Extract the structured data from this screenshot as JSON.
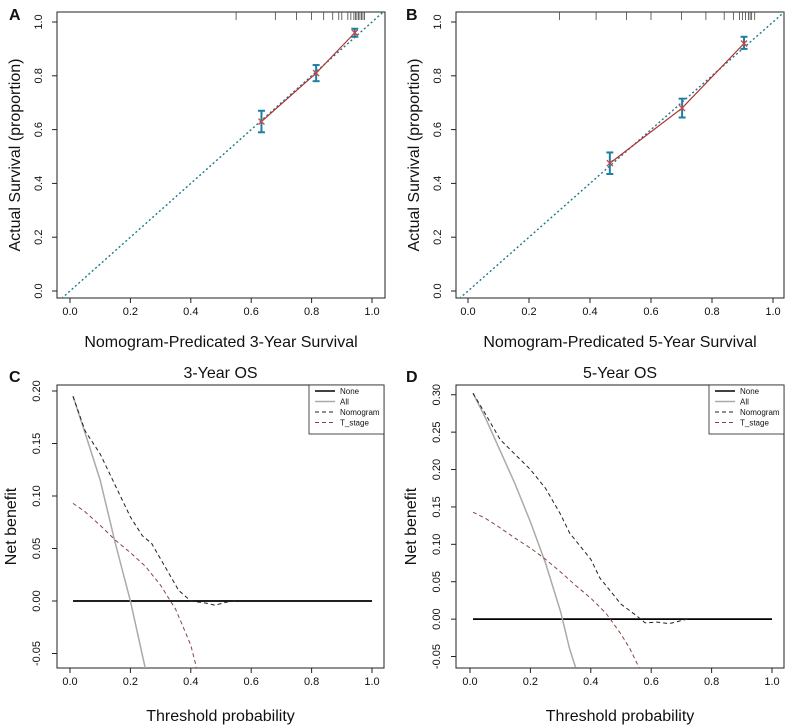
{
  "chart_data": [
    {
      "panel": "A",
      "type": "calibration",
      "title": "",
      "xlabel": "Nomogram-Predicated 3-Year Survival",
      "ylabel": "Actual Survival (proportion)",
      "xlim": [
        0,
        1
      ],
      "ylim": [
        0,
        1
      ],
      "xticks": [
        "0.0",
        "0.2",
        "0.4",
        "0.6",
        "0.8",
        "1.0"
      ],
      "yticks": [
        "0.0",
        "0.2",
        "0.4",
        "0.6",
        "0.8",
        "1.0"
      ],
      "reference_line": {
        "name": "ideal",
        "points": [
          [
            -0.05,
            -0.05
          ],
          [
            1.05,
            1.05
          ]
        ]
      },
      "points": [
        {
          "x": 0.634,
          "y": 0.63,
          "lo": 0.59,
          "hi": 0.67
        },
        {
          "x": 0.815,
          "y": 0.81,
          "lo": 0.78,
          "hi": 0.84
        },
        {
          "x": 0.943,
          "y": 0.96,
          "lo": 0.945,
          "hi": 0.975
        }
      ],
      "rug": [
        0.55,
        0.68,
        0.75,
        0.8,
        0.84,
        0.87,
        0.89,
        0.9,
        0.92,
        0.93,
        0.94,
        0.945,
        0.95,
        0.955,
        0.96,
        0.965,
        0.97,
        0.975
      ],
      "colors": {
        "ideal": "#1a7a8a",
        "curve": "#b03030",
        "error": "#1f7fa0",
        "marker": "#cc4444"
      }
    },
    {
      "panel": "B",
      "type": "calibration",
      "title": "",
      "xlabel": "Nomogram-Predicated 5-Year Survival",
      "ylabel": "Actual Survival (proportion)",
      "xlim": [
        0,
        1
      ],
      "ylim": [
        0,
        1
      ],
      "xticks": [
        "0.0",
        "0.2",
        "0.4",
        "0.6",
        "0.8",
        "1.0"
      ],
      "yticks": [
        "0.0",
        "0.2",
        "0.4",
        "0.6",
        "0.8",
        "1.0"
      ],
      "reference_line": {
        "name": "ideal",
        "points": [
          [
            -0.05,
            -0.05
          ],
          [
            1.05,
            1.05
          ]
        ]
      },
      "points": [
        {
          "x": 0.465,
          "y": 0.475,
          "lo": 0.435,
          "hi": 0.515
        },
        {
          "x": 0.702,
          "y": 0.68,
          "lo": 0.645,
          "hi": 0.715
        },
        {
          "x": 0.905,
          "y": 0.92,
          "lo": 0.9,
          "hi": 0.945
        }
      ],
      "rug": [
        0.3,
        0.42,
        0.52,
        0.6,
        0.7,
        0.78,
        0.84,
        0.87,
        0.89,
        0.9,
        0.91,
        0.92,
        0.925,
        0.93,
        0.94
      ],
      "colors": {
        "ideal": "#1a7a8a",
        "curve": "#b03030",
        "error": "#1f7fa0",
        "marker": "#cc4444"
      }
    },
    {
      "panel": "C",
      "type": "line",
      "title": "3-Year OS",
      "xlabel": "Threshold probability",
      "ylabel": "Net benefit",
      "xlim": [
        0,
        1
      ],
      "ylim": [
        -0.06,
        0.2
      ],
      "xticks": [
        "0.0",
        "0.2",
        "0.4",
        "0.6",
        "0.8",
        "1.0"
      ],
      "yticks": [
        "-0.05",
        "0.00",
        "0.05",
        "0.10",
        "0.15",
        "0.20"
      ],
      "ytick_values": [
        -0.05,
        0,
        0.05,
        0.1,
        0.15,
        0.2
      ],
      "legend": [
        "None",
        "All",
        "Nomogram",
        "T_stage"
      ],
      "legend_position": "top-right",
      "series": [
        {
          "name": "None",
          "color": "#000000",
          "dash": "",
          "width": 1.8,
          "points": [
            [
              0.01,
              0.0
            ],
            [
              1.0,
              0.0
            ]
          ]
        },
        {
          "name": "All",
          "color": "#aaaaaa",
          "dash": "",
          "width": 1.5,
          "points": [
            [
              0.01,
              0.195
            ],
            [
              0.05,
              0.16
            ],
            [
              0.1,
              0.115
            ],
            [
              0.15,
              0.055
            ],
            [
              0.2,
              0.0
            ],
            [
              0.25,
              -0.065
            ]
          ]
        },
        {
          "name": "Nomogram",
          "color": "#222222",
          "dash": "4,3",
          "width": 1.0,
          "points": [
            [
              0.01,
              0.195
            ],
            [
              0.05,
              0.162
            ],
            [
              0.1,
              0.14
            ],
            [
              0.15,
              0.11
            ],
            [
              0.2,
              0.08
            ],
            [
              0.24,
              0.062
            ],
            [
              0.27,
              0.055
            ],
            [
              0.3,
              0.04
            ],
            [
              0.33,
              0.025
            ],
            [
              0.36,
              0.01
            ],
            [
              0.4,
              0.0
            ],
            [
              0.45,
              -0.002
            ],
            [
              0.48,
              -0.004
            ],
            [
              0.52,
              -0.001
            ],
            [
              0.55,
              0.0
            ]
          ]
        },
        {
          "name": "T_stage",
          "color": "#884444",
          "dash": "4,3",
          "width": 1.0,
          "points": [
            [
              0.01,
              0.093
            ],
            [
              0.05,
              0.085
            ],
            [
              0.1,
              0.072
            ],
            [
              0.15,
              0.058
            ],
            [
              0.2,
              0.046
            ],
            [
              0.25,
              0.033
            ],
            [
              0.3,
              0.015
            ],
            [
              0.35,
              -0.008
            ],
            [
              0.4,
              -0.042
            ],
            [
              0.42,
              -0.065
            ]
          ]
        }
      ]
    },
    {
      "panel": "D",
      "type": "line",
      "title": "5-Year OS",
      "xlabel": "Threshold probability",
      "ylabel": "Net benefit",
      "xlim": [
        0,
        1
      ],
      "ylim": [
        -0.06,
        0.305
      ],
      "xticks": [
        "0.0",
        "0.2",
        "0.4",
        "0.6",
        "0.8",
        "1.0"
      ],
      "yticks": [
        "-0.05",
        "0.00",
        "0.05",
        "0.10",
        "0.15",
        "0.20",
        "0.25",
        "0.30"
      ],
      "ytick_values": [
        -0.05,
        0,
        0.05,
        0.1,
        0.15,
        0.2,
        0.25,
        0.3
      ],
      "legend": [
        "None",
        "All",
        "Nomogram",
        "T_stage"
      ],
      "legend_position": "top-right",
      "series": [
        {
          "name": "None",
          "color": "#000000",
          "dash": "",
          "width": 1.8,
          "points": [
            [
              0.01,
              0.0
            ],
            [
              1.0,
              0.0
            ]
          ]
        },
        {
          "name": "All",
          "color": "#aaaaaa",
          "dash": "",
          "width": 1.5,
          "points": [
            [
              0.01,
              0.302
            ],
            [
              0.05,
              0.27
            ],
            [
              0.1,
              0.225
            ],
            [
              0.15,
              0.18
            ],
            [
              0.2,
              0.13
            ],
            [
              0.25,
              0.075
            ],
            [
              0.3,
              0.01
            ],
            [
              0.33,
              -0.04
            ],
            [
              0.35,
              -0.065
            ]
          ]
        },
        {
          "name": "Nomogram",
          "color": "#222222",
          "dash": "4,3",
          "width": 1.0,
          "points": [
            [
              0.01,
              0.302
            ],
            [
              0.05,
              0.275
            ],
            [
              0.1,
              0.24
            ],
            [
              0.15,
              0.22
            ],
            [
              0.2,
              0.2
            ],
            [
              0.25,
              0.175
            ],
            [
              0.3,
              0.14
            ],
            [
              0.33,
              0.115
            ],
            [
              0.36,
              0.1
            ],
            [
              0.4,
              0.08
            ],
            [
              0.43,
              0.055
            ],
            [
              0.46,
              0.04
            ],
            [
              0.5,
              0.02
            ],
            [
              0.55,
              0.005
            ],
            [
              0.58,
              -0.005
            ],
            [
              0.62,
              -0.004
            ],
            [
              0.66,
              -0.006
            ],
            [
              0.7,
              -0.002
            ],
            [
              0.72,
              0.0
            ]
          ]
        },
        {
          "name": "T_stage",
          "color": "#884444",
          "dash": "4,3",
          "width": 1.0,
          "points": [
            [
              0.01,
              0.143
            ],
            [
              0.05,
              0.135
            ],
            [
              0.1,
              0.122
            ],
            [
              0.15,
              0.108
            ],
            [
              0.2,
              0.095
            ],
            [
              0.25,
              0.08
            ],
            [
              0.3,
              0.063
            ],
            [
              0.35,
              0.045
            ],
            [
              0.4,
              0.028
            ],
            [
              0.45,
              0.008
            ],
            [
              0.5,
              -0.02
            ],
            [
              0.53,
              -0.04
            ],
            [
              0.56,
              -0.065
            ]
          ]
        }
      ]
    }
  ]
}
